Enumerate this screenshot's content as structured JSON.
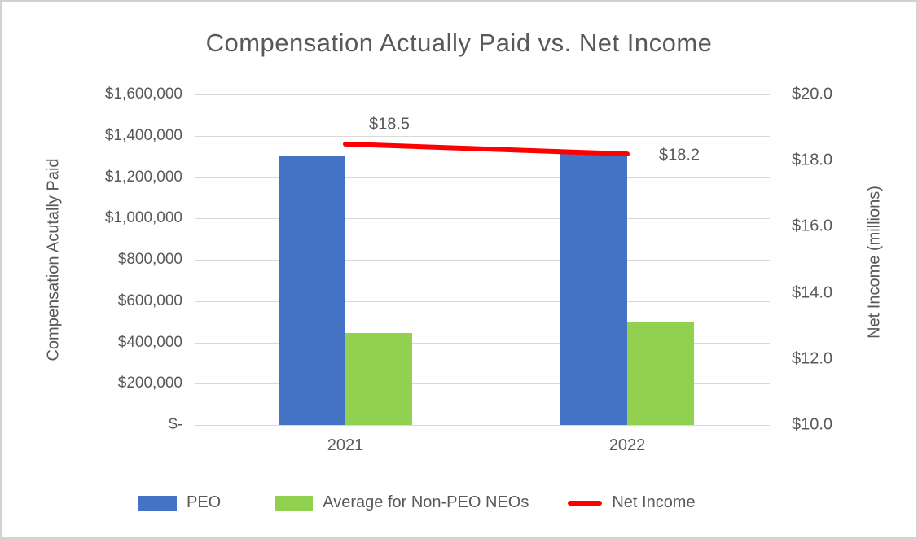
{
  "title": "Compensation Actually Paid vs. Net Income",
  "chart_data": {
    "type": "bar",
    "subtype": "combo-bar-line-dual-axis",
    "categories": [
      "2021",
      "2022"
    ],
    "series": [
      {
        "name": "PEO",
        "type": "bar",
        "axis": "left",
        "color": "#4472C4",
        "values": [
          1300000,
          1320000
        ]
      },
      {
        "name": "Average for Non-PEO NEOs",
        "type": "bar",
        "axis": "left",
        "color": "#92D050",
        "values": [
          445000,
          500000
        ]
      },
      {
        "name": "Net Income",
        "type": "line",
        "axis": "right",
        "color": "#FF0000",
        "values": [
          18.5,
          18.2
        ],
        "point_labels": [
          "$18.5",
          "$18.2"
        ]
      }
    ],
    "left_axis": {
      "title": "Compensation Acutally Paid",
      "min": 0,
      "max": 1600000,
      "step": 200000,
      "ticks": [
        "$1,600,000",
        "$1,400,000",
        "$1,200,000",
        "$1,000,000",
        "$800,000",
        "$600,000",
        "$400,000",
        "$200,000",
        "$-"
      ]
    },
    "right_axis": {
      "title": "Net Income (millions)",
      "min": 10,
      "max": 20,
      "step": 2,
      "ticks": [
        "$20.0",
        "$18.0",
        "$16.0",
        "$14.0",
        "$12.0",
        "$10.0"
      ]
    },
    "grid": true,
    "legend_position": "bottom",
    "text_color": "#595959",
    "gridline_color": "#D9D9D9"
  }
}
